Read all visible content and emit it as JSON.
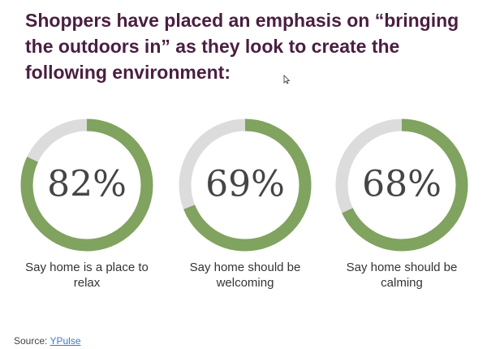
{
  "headline": "Shoppers have placed an emphasis on “bringing the outdoors in” as they look to create the following environment:",
  "colors": {
    "headline": "#4a1f40",
    "filled": "#80a35f",
    "track": "#dcdcdc",
    "percent_text": "#454545",
    "link": "#3a7dc9"
  },
  "chart_data": {
    "type": "pie",
    "charts": [
      {
        "value": 82,
        "label": "82%",
        "caption": "Say home is a place to relax"
      },
      {
        "value": 69,
        "label": "69%",
        "caption": "Say home should be welcoming"
      },
      {
        "value": 68,
        "label": "68%",
        "caption": "Say home should be calming"
      }
    ]
  },
  "source": {
    "prefix": "Source: ",
    "link_text": "YPulse"
  }
}
